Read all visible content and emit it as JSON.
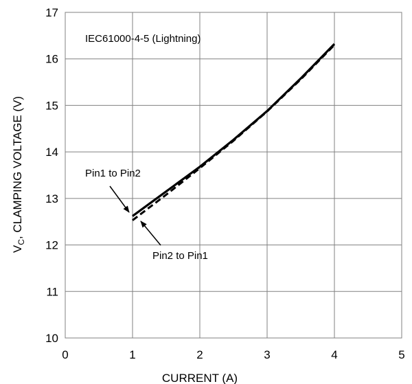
{
  "chart_data": {
    "type": "line",
    "title": "",
    "xlabel": "CURRENT (A)",
    "ylabel": {
      "main_prefix": "V",
      "subscript": "C",
      "rest": ", CLAMPING VOLTAGE (V)"
    },
    "xlim": [
      0,
      5
    ],
    "ylim": [
      10,
      17
    ],
    "x_ticks": [
      "0",
      "1",
      "2",
      "3",
      "4",
      "5"
    ],
    "y_ticks": [
      "10",
      "11",
      "12",
      "13",
      "14",
      "15",
      "16",
      "17"
    ],
    "grid": true,
    "series": [
      {
        "name": "Pin1 to Pin2",
        "style": "solid",
        "x": [
          1.0,
          1.5,
          2.0,
          2.5,
          3.0,
          3.5,
          4.0
        ],
        "y": [
          12.62,
          13.15,
          13.68,
          14.26,
          14.88,
          15.58,
          16.32
        ]
      },
      {
        "name": "Pin2 to Pin1",
        "style": "dashed",
        "x": [
          1.0,
          1.5,
          2.0,
          2.5,
          3.0,
          3.5,
          4.0
        ],
        "y": [
          12.53,
          13.08,
          13.65,
          14.24,
          14.87,
          15.56,
          16.3
        ]
      }
    ],
    "annotations": {
      "condition": "IEC61000-4-5 (Lightning)",
      "label_pin1": "Pin1 to Pin2",
      "label_pin2": "Pin2 to Pin1"
    },
    "line_color": "#000000",
    "grid_color": "#808080"
  }
}
